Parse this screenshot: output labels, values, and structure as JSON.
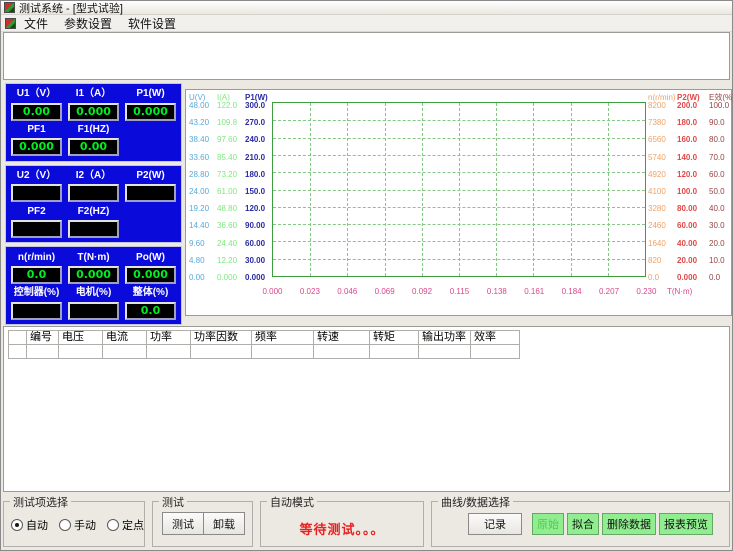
{
  "window": {
    "title": "测试系统 - [型式试验]"
  },
  "menu": {
    "items": [
      {
        "label": "文件"
      },
      {
        "label": "参数设置"
      },
      {
        "label": "软件设置"
      }
    ]
  },
  "colors": {
    "panel_blue": "#0a0ada",
    "value_green": "#00ee22",
    "button_green": "#90ee90",
    "status_red": "#e82222",
    "grid_green": "#85c885"
  },
  "meters": {
    "panels": [
      {
        "rows": [
          [
            {
              "label": "U1（V）",
              "value": "0.00"
            },
            {
              "label": "I1（A）",
              "value": "0.000"
            },
            {
              "label": "P1(W)",
              "value": "0.000"
            }
          ],
          [
            {
              "label": "PF1",
              "value": "0.000"
            },
            {
              "label": "F1(HZ)",
              "value": "0.00"
            },
            null
          ]
        ]
      },
      {
        "rows": [
          [
            {
              "label": "U2（V）",
              "value": ""
            },
            {
              "label": "I2（A）",
              "value": ""
            },
            {
              "label": "P2(W)",
              "value": ""
            }
          ],
          [
            {
              "label": "PF2",
              "value": ""
            },
            {
              "label": "F2(HZ)",
              "value": ""
            },
            null
          ]
        ]
      },
      {
        "rows": [
          [
            {
              "label": "n(r/min)",
              "value": "0.0"
            },
            {
              "label": "T(N·m)",
              "value": "0.000"
            },
            {
              "label": "Po(W)",
              "value": "0.000"
            }
          ],
          [
            {
              "label": "控制器(%)",
              "value": ""
            },
            {
              "label": "电机(%)",
              "value": ""
            },
            {
              "label": "整体(%)",
              "value": "0.0"
            }
          ]
        ]
      }
    ]
  },
  "chart_data": {
    "type": "line",
    "title": "",
    "series": [],
    "grid": true,
    "legend": "none",
    "x_axis": {
      "label": "T(N·m)",
      "color": "#d8488c",
      "ticks": [
        "0.000",
        "0.023",
        "0.046",
        "0.069",
        "0.092",
        "0.115",
        "0.138",
        "0.161",
        "0.184",
        "0.207",
        "0.230"
      ],
      "range": [
        0.0,
        0.23
      ]
    },
    "left_axes": [
      {
        "label": "U(V)",
        "color": "#58a8d8",
        "range": [
          0,
          48
        ],
        "ticks": [
          "48.00",
          "43.20",
          "38.40",
          "33.60",
          "28.80",
          "24.00",
          "19.20",
          "14.40",
          "9.60",
          "4.80",
          "0.00"
        ]
      },
      {
        "label": "I(A)",
        "color": "#7fe87f",
        "range": [
          0,
          122
        ],
        "ticks": [
          "122.0",
          "109.8",
          "97.60",
          "85.40",
          "73.20",
          "61.00",
          "48.80",
          "36.60",
          "24.40",
          "12.20",
          "0.000"
        ]
      },
      {
        "label": "P1(W)",
        "color": "#2a2aa4",
        "range": [
          0,
          300
        ],
        "ticks": [
          "300.0",
          "270.0",
          "240.0",
          "210.0",
          "180.0",
          "150.0",
          "120.0",
          "90.00",
          "60.00",
          "30.00",
          "0.000"
        ]
      }
    ],
    "right_axes": [
      {
        "label": "n(r/min)",
        "color": "#eda268",
        "range": [
          0,
          8200
        ],
        "ticks": [
          "8200",
          "7380",
          "6560",
          "5740",
          "4920",
          "4100",
          "3280",
          "2460",
          "1640",
          "820",
          "0.0"
        ]
      },
      {
        "label": "P2(W)",
        "color": "#e04848",
        "range": [
          0,
          200
        ],
        "ticks": [
          "200.0",
          "180.0",
          "160.0",
          "140.0",
          "120.0",
          "100.0",
          "80.00",
          "60.00",
          "40.00",
          "20.00",
          "0.000"
        ]
      },
      {
        "label": "E效(%)",
        "color": "#964444",
        "range": [
          0,
          100
        ],
        "ticks": [
          "100.0",
          "90.0",
          "80.0",
          "70.0",
          "60.0",
          "50.0",
          "40.0",
          "30.0",
          "20.0",
          "10.0",
          "0.0"
        ]
      }
    ]
  },
  "table": {
    "headers": [
      "编号",
      "电压",
      "电流",
      "功率",
      "功率因数",
      "频率",
      "转速",
      "转矩",
      "输出功率",
      "效率"
    ],
    "rows": []
  },
  "footer": {
    "test_select": {
      "title": "测试项选择",
      "options": [
        {
          "label": "自动",
          "selected": true
        },
        {
          "label": "手动",
          "selected": false
        },
        {
          "label": "定点",
          "selected": false
        }
      ]
    },
    "test": {
      "title": "测试",
      "buttons": [
        {
          "label": "测试"
        },
        {
          "label": "卸载"
        }
      ]
    },
    "auto_mode": {
      "title": "自动模式",
      "status": "等待测试。。。",
      "status_color": "#e82222"
    },
    "curve": {
      "title": "曲线/数据选择",
      "record_button": "记录",
      "buttons": [
        {
          "label": "原始",
          "dim": true
        },
        {
          "label": "拟合",
          "dim": false
        },
        {
          "label": "删除数据",
          "dim": false
        },
        {
          "label": "报表预览",
          "dim": false
        }
      ]
    }
  }
}
